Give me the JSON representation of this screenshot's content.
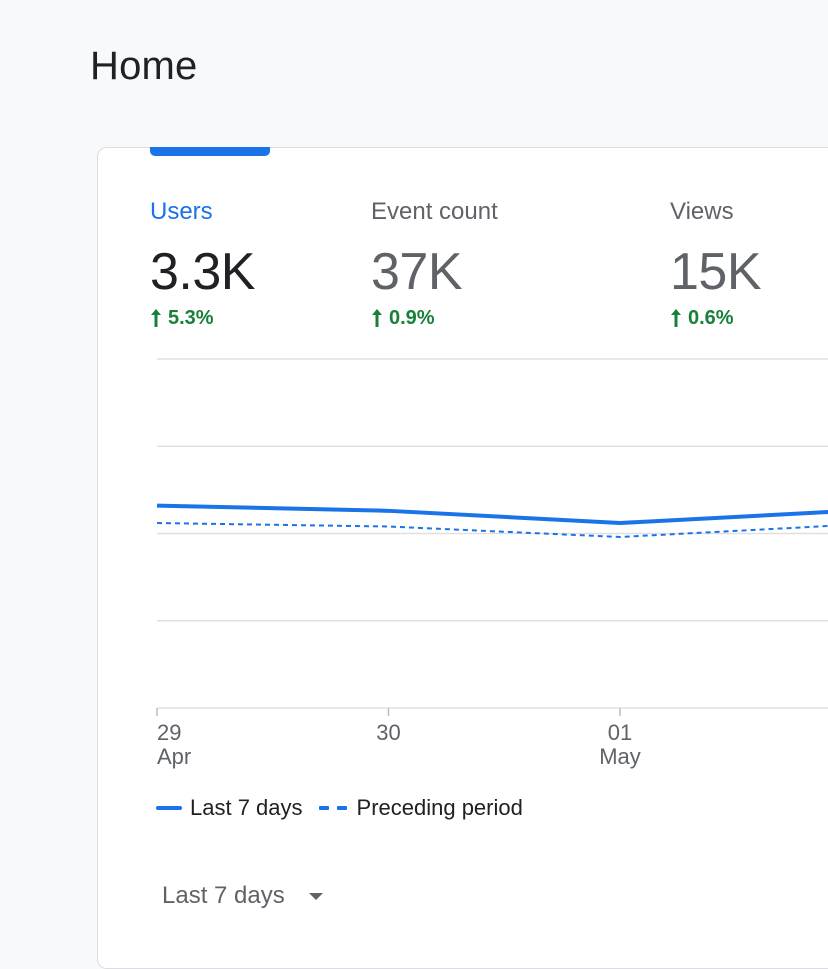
{
  "page": {
    "title": "Home"
  },
  "metrics": [
    {
      "label": "Users",
      "value": "3.3K",
      "change": "5.3%",
      "active": true
    },
    {
      "label": "Event count",
      "value": "37K",
      "change": "0.9%",
      "active": false
    },
    {
      "label": "Views",
      "value": "15K",
      "change": "0.6%",
      "active": false
    }
  ],
  "colors": {
    "accent": "#1a73e8",
    "positive": "#188038",
    "text_primary": "#202124",
    "text_secondary": "#5f6368"
  },
  "icons": {
    "change": "arrow-up-icon",
    "date_range": "caret-down-icon"
  },
  "chart_data": {
    "type": "line",
    "x_ticks": [
      {
        "day": "29",
        "month": "Apr"
      },
      {
        "day": "30",
        "month": ""
      },
      {
        "day": "01",
        "month": "May"
      }
    ],
    "series": [
      {
        "name": "Last 7 days",
        "style": "solid",
        "values": [
          0.58,
          0.565,
          0.53,
          0.565
        ]
      },
      {
        "name": "Preceding period",
        "style": "dashed",
        "values": [
          0.53,
          0.52,
          0.49,
          0.525
        ]
      }
    ],
    "gridlines": 4,
    "legend_position": "bottom-left"
  },
  "legend": {
    "current": "Last 7 days",
    "previous": "Preceding period"
  },
  "date_range": {
    "label": "Last 7 days"
  }
}
